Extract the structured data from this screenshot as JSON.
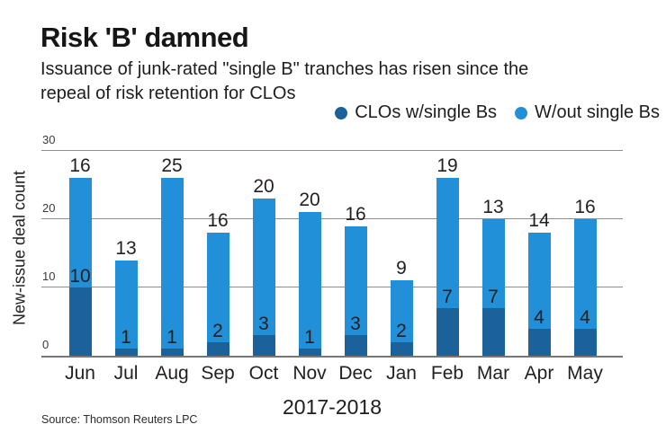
{
  "header": {
    "title": "Risk 'B' damned",
    "subtitle_line1": "Issuance of junk-rated \"single B\" tranches has risen since the",
    "subtitle_line2": "repeal of risk retention for CLOs"
  },
  "legend": {
    "items": [
      {
        "label": "CLOs w/single Bs",
        "color": "#1a6299"
      },
      {
        "label": "W/out single Bs",
        "color": "#2190d8"
      }
    ]
  },
  "chart_data": {
    "type": "bar",
    "stacked": true,
    "title": "Risk 'B' damned",
    "categories": [
      "Jun",
      "Jul",
      "Aug",
      "Sep",
      "Oct",
      "Nov",
      "Dec",
      "Jan",
      "Feb",
      "Mar",
      "Apr",
      "May"
    ],
    "series": [
      {
        "name": "CLOs w/single Bs",
        "color": "#1a6299",
        "values": [
          10,
          1,
          1,
          2,
          3,
          1,
          3,
          2,
          7,
          7,
          4,
          4
        ]
      },
      {
        "name": "W/out single Bs",
        "color": "#2190d8",
        "values": [
          16,
          13,
          25,
          16,
          20,
          20,
          16,
          9,
          19,
          13,
          14,
          16
        ]
      }
    ],
    "ylabel": "New-issue deal count",
    "xlabel": "2017-2018",
    "y_ticks": [
      0,
      10,
      20,
      30
    ],
    "ylim": [
      0,
      30
    ],
    "grid": true,
    "legend_position": "top-right",
    "gridline_color": "#8e8e8e",
    "axis_color": "#767676",
    "label_color": "#231f20"
  },
  "footer": {
    "source": "Source: Thomson Reuters LPC"
  }
}
